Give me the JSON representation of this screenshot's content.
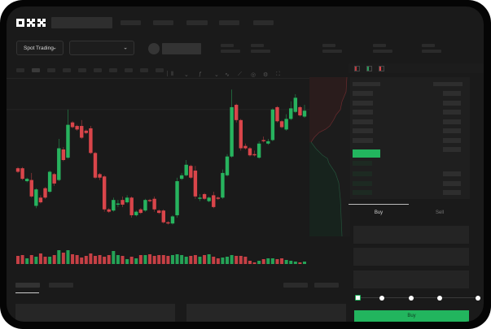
{
  "header": {
    "logo": "OKX"
  },
  "toolbar": {
    "market_type": "Spot Trading"
  },
  "trade": {
    "tabs": [
      "Buy",
      "Sell"
    ],
    "active_tab": "Buy",
    "slider_level": 0
  },
  "colors": {
    "up": "#27b35e",
    "down": "#d9454a",
    "accent": "#22b55e",
    "background": "#1a1a1a"
  },
  "icons": [
    "chevron-down-icon",
    "indicator-icon",
    "draw-line-icon",
    "ruler-icon",
    "camera-icon",
    "settings-icon",
    "fullscreen-icon",
    "orderbook-both-icon",
    "orderbook-bids-icon",
    "orderbook-asks-icon"
  ],
  "chart_data": {
    "type": "candlestick",
    "ylim": [
      60,
      190
    ],
    "candles": [
      [
        118,
        115,
        119,
        114
      ],
      [
        118,
        109,
        119,
        108
      ],
      [
        107,
        109,
        110,
        106
      ],
      [
        108,
        94,
        114,
        93
      ],
      [
        86,
        100,
        101,
        84
      ],
      [
        93,
        89,
        95,
        88
      ],
      [
        101,
        93,
        102,
        92
      ],
      [
        98,
        115,
        116,
        97
      ],
      [
        113,
        105,
        114,
        103
      ],
      [
        108,
        135,
        143,
        107
      ],
      [
        134,
        125,
        136,
        124
      ],
      [
        127,
        155,
        168,
        126
      ],
      [
        157,
        153,
        158,
        152
      ],
      [
        154,
        151,
        155,
        150
      ],
      [
        154,
        144,
        159,
        143
      ],
      [
        150,
        148,
        151,
        147
      ],
      [
        152,
        131,
        154,
        130
      ],
      [
        131,
        110,
        132,
        109
      ],
      [
        113,
        110,
        114,
        108
      ],
      [
        111,
        83,
        112,
        81
      ],
      [
        83,
        81,
        84,
        80
      ],
      [
        82,
        91,
        93,
        81
      ],
      [
        87,
        88,
        91,
        85
      ],
      [
        91,
        87,
        94,
        85
      ],
      [
        89,
        93,
        95,
        88
      ],
      [
        93,
        78,
        94,
        76
      ],
      [
        78,
        81,
        82,
        77
      ],
      [
        83,
        80,
        84,
        79
      ],
      [
        82,
        91,
        92,
        81
      ],
      [
        91,
        90,
        92,
        89
      ],
      [
        92,
        83,
        94,
        81
      ],
      [
        82,
        80,
        83,
        79
      ],
      [
        82,
        72,
        83,
        71
      ],
      [
        72,
        71,
        73,
        70
      ],
      [
        71,
        77,
        78,
        70
      ],
      [
        78,
        107,
        110,
        76
      ],
      [
        109,
        112,
        114,
        108
      ],
      [
        112,
        121,
        125,
        111
      ],
      [
        120,
        110,
        121,
        109
      ],
      [
        116,
        94,
        120,
        92
      ],
      [
        92,
        93,
        96,
        90
      ],
      [
        96,
        92,
        97,
        91
      ],
      [
        90,
        93,
        94,
        89
      ],
      [
        95,
        85,
        98,
        84
      ],
      [
        93,
        92,
        94,
        91
      ],
      [
        93,
        114,
        117,
        92
      ],
      [
        112,
        128,
        130,
        111
      ],
      [
        128,
        170,
        185,
        127
      ],
      [
        172,
        159,
        173,
        157
      ],
      [
        159,
        135,
        160,
        133
      ],
      [
        137,
        135,
        139,
        134
      ],
      [
        135,
        129,
        136,
        128
      ],
      [
        130,
        129,
        133,
        128
      ],
      [
        127,
        139,
        141,
        126
      ],
      [
        142,
        141,
        145,
        140
      ],
      [
        139,
        141,
        143,
        138
      ],
      [
        142,
        168,
        169,
        141
      ],
      [
        170,
        158,
        171,
        157
      ],
      [
        158,
        153,
        159,
        152
      ],
      [
        151,
        160,
        164,
        150
      ],
      [
        160,
        169,
        175,
        159
      ],
      [
        166,
        178,
        181,
        165
      ],
      [
        170,
        163,
        171,
        162
      ],
      [
        162,
        167,
        172,
        161
      ]
    ],
    "volumes": [
      10,
      11,
      7,
      11,
      9,
      13,
      9,
      9,
      11,
      17,
      14,
      17,
      12,
      11,
      8,
      10,
      13,
      10,
      11,
      9,
      11,
      16,
      11,
      10,
      6,
      9,
      7,
      11,
      11,
      12,
      10,
      11,
      11,
      10,
      11,
      12,
      11,
      9,
      10,
      11,
      9,
      11,
      12,
      9,
      7,
      8,
      9,
      11,
      10,
      10,
      9,
      4,
      2,
      4,
      6,
      7,
      7,
      6,
      7,
      5,
      4,
      3,
      2,
      3
    ],
    "reference_price": 168
  }
}
